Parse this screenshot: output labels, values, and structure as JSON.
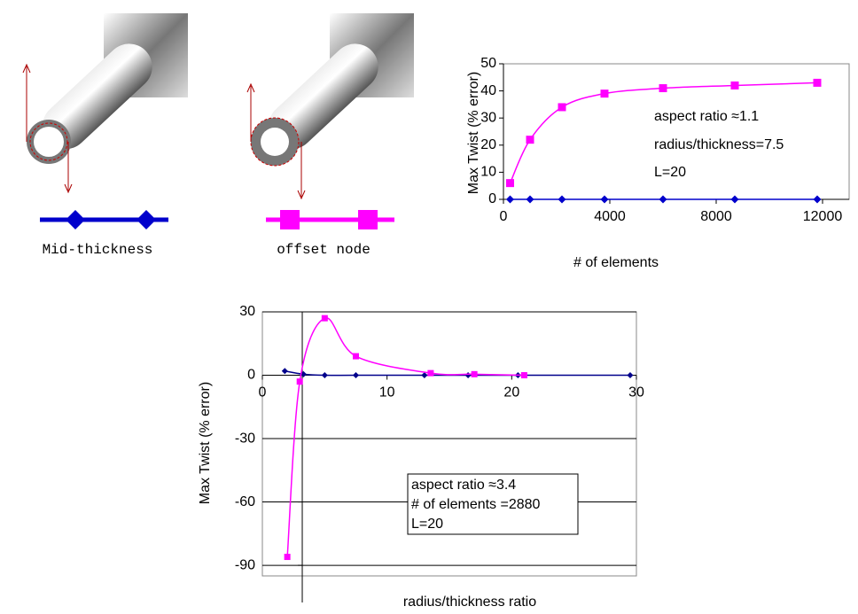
{
  "chart_data": [
    {
      "type": "line",
      "ylabel": "Max Twist (% error)",
      "xlabel": "# of elements",
      "xlim": [
        0,
        13000
      ],
      "xticks": [
        0,
        4000,
        8000,
        12000
      ],
      "ylim": [
        0,
        50
      ],
      "yticks": [
        0,
        10,
        20,
        30,
        40,
        50
      ],
      "series": [
        {
          "name": "Mid-thickness",
          "color": "#0000cc",
          "marker": "diamond",
          "x": [
            250,
            1000,
            2200,
            3800,
            6000,
            8700,
            11800
          ],
          "values": [
            0,
            0,
            0,
            0,
            0,
            0,
            0
          ]
        },
        {
          "name": "offset node",
          "color": "#ff00ff",
          "marker": "square",
          "x": [
            250,
            1000,
            2200,
            3800,
            6000,
            8700,
            11800
          ],
          "values": [
            6,
            22,
            34,
            39,
            41,
            42,
            43
          ]
        }
      ],
      "annotations": [
        "aspect ratio ≈1.1",
        "radius/thickness=7.5",
        "L=20"
      ]
    },
    {
      "type": "line",
      "ylabel": "Max Twist (% error)",
      "xlabel": "radius/thickness ratio",
      "xlim": [
        0,
        30
      ],
      "xticks": [
        0,
        10,
        20,
        30
      ],
      "ylim": [
        -95,
        30
      ],
      "yticks": [
        30,
        0,
        -30,
        -60,
        -90
      ],
      "grid": true,
      "y_axis_crossing": 3.2,
      "series": [
        {
          "color": "#00008b",
          "marker": "diamond",
          "x": [
            1.8,
            3.3,
            5,
            7.5,
            13,
            16.5,
            20.5,
            29.5
          ],
          "values": [
            2,
            0.5,
            0,
            0,
            0,
            0,
            0,
            0
          ]
        },
        {
          "color": "#ff00ff",
          "marker": "square",
          "x": [
            2,
            3,
            5,
            7.5,
            13.5,
            17,
            21
          ],
          "values": [
            -86,
            -3,
            27,
            9,
            1,
            0.5,
            0
          ]
        }
      ],
      "annotations": [
        "aspect ratio ≈3.4",
        "# of elements =2880",
        "L=20"
      ]
    }
  ]
}
